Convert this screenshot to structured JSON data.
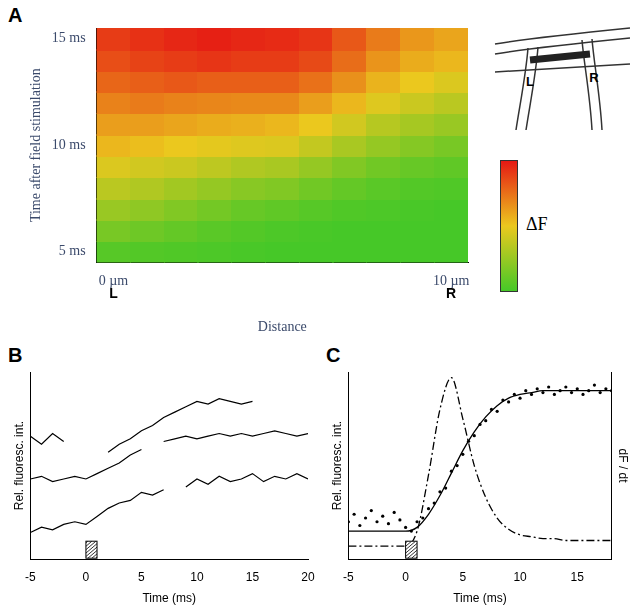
{
  "chart_data": [
    {
      "panel": "A",
      "type": "heatmap",
      "x_label": "Distance",
      "y_label": "Time after field stimulation",
      "z_label": "ΔF",
      "x": [
        0,
        1,
        2,
        3,
        4,
        5,
        6,
        7,
        8,
        9,
        10
      ],
      "y": [
        5,
        6,
        7,
        8,
        9,
        10,
        11,
        12,
        13,
        14,
        15
      ],
      "cells": [
        [
          0.05,
          0.04,
          0.03,
          0.02,
          0.01,
          0,
          0,
          0,
          0,
          0,
          0
        ],
        [
          0.15,
          0.12,
          0.09,
          0.06,
          0.04,
          0.02,
          0.01,
          0,
          0,
          0,
          0
        ],
        [
          0.25,
          0.22,
          0.18,
          0.14,
          0.1,
          0.08,
          0.05,
          0.03,
          0.02,
          0.01,
          0
        ],
        [
          0.35,
          0.32,
          0.28,
          0.24,
          0.2,
          0.18,
          0.13,
          0.09,
          0.06,
          0.04,
          0.03
        ],
        [
          0.45,
          0.42,
          0.4,
          0.36,
          0.32,
          0.3,
          0.24,
          0.18,
          0.13,
          0.1,
          0.08
        ],
        [
          0.55,
          0.53,
          0.5,
          0.48,
          0.46,
          0.45,
          0.38,
          0.3,
          0.24,
          0.19,
          0.15
        ],
        [
          0.62,
          0.62,
          0.6,
          0.58,
          0.57,
          0.55,
          0.5,
          0.42,
          0.34,
          0.29,
          0.25
        ],
        [
          0.7,
          0.72,
          0.7,
          0.69,
          0.68,
          0.68,
          0.62,
          0.55,
          0.46,
          0.4,
          0.35
        ],
        [
          0.78,
          0.8,
          0.82,
          0.8,
          0.8,
          0.8,
          0.75,
          0.66,
          0.56,
          0.5,
          0.45
        ],
        [
          0.85,
          0.88,
          0.9,
          0.92,
          0.9,
          0.9,
          0.86,
          0.76,
          0.65,
          0.58,
          0.55
        ],
        [
          0.9,
          0.93,
          0.96,
          0.98,
          0.96,
          0.95,
          0.92,
          0.82,
          0.72,
          0.64,
          0.6
        ]
      ],
      "zlim": [
        0,
        1
      ],
      "xlim": [
        -0.5,
        10.5
      ],
      "xticks": [
        {
          "value": 0,
          "label": "0 µm"
        },
        {
          "value": 10,
          "label": "10 µm"
        }
      ],
      "ylim": [
        4.5,
        15.5
      ],
      "yticks": [
        {
          "value": 5,
          "label": "5 ms"
        },
        {
          "value": 10,
          "label": "10 ms"
        },
        {
          "value": 15,
          "label": "15 ms"
        }
      ],
      "annotations": [
        {
          "x": 0,
          "text": "L"
        },
        {
          "x": 10,
          "text": "R"
        }
      ],
      "inset_labels": [
        "L",
        "R"
      ],
      "grid": false
    },
    {
      "panel": "B",
      "type": "line",
      "x": [
        -5,
        -4,
        -3,
        -2,
        -1,
        0,
        1,
        2,
        3,
        4,
        5,
        6,
        7,
        8,
        9,
        10,
        11,
        12,
        13,
        14,
        15,
        16,
        17,
        18,
        19,
        20
      ],
      "series": [
        {
          "color": "#000000",
          "values": [
            7.6,
            7.3,
            7.7,
            7.4,
            null,
            null,
            null,
            7.0,
            7.3,
            7.5,
            7.8,
            8.0,
            8.3,
            8.5,
            8.7,
            8.9,
            8.8,
            9.0,
            8.9,
            8.8,
            8.9,
            null,
            null,
            null,
            null,
            null
          ]
        },
        {
          "color": "#000000",
          "values": [
            6.0,
            6.1,
            5.9,
            6.0,
            6.1,
            6.0,
            6.2,
            6.4,
            6.6,
            6.9,
            7.1,
            null,
            7.4,
            7.5,
            7.6,
            7.5,
            7.6,
            7.7,
            7.6,
            7.7,
            7.6,
            7.7,
            7.8,
            7.7,
            7.6,
            7.7
          ]
        },
        {
          "color": "#000000",
          "values": [
            4.0,
            4.2,
            4.1,
            4.3,
            4.4,
            4.3,
            4.6,
            4.9,
            5.1,
            5.2,
            5.5,
            5.4,
            5.6,
            null,
            5.7,
            6.0,
            5.8,
            6.1,
            5.9,
            6.0,
            6.2,
            5.9,
            6.1,
            6.0,
            6.2,
            6.0
          ]
        }
      ],
      "xlim": [
        -5,
        20
      ],
      "xticks": [
        -5,
        0,
        5,
        10,
        15,
        20
      ],
      "ylim": [
        3,
        10
      ],
      "x_label": "Time (ms)",
      "y_label": "Rel. fluoresc. int.",
      "stimulus": [
        0,
        1
      ],
      "tick_labels": "x",
      "grid": false
    },
    {
      "panel": "C",
      "type": "line",
      "series": [
        {
          "type": "scatter",
          "marker": "circle",
          "color": "#000000",
          "x": [
            -5,
            -4.5,
            -4,
            -3.5,
            -3,
            -2.5,
            -2,
            -1.5,
            -1,
            -0.5,
            0,
            0.5,
            1,
            1.5,
            2,
            2.5,
            3,
            3.5,
            4,
            4.5,
            5,
            5.5,
            6,
            6.5,
            7,
            7.5,
            8,
            8.5,
            9,
            9.5,
            10,
            10.5,
            11,
            11.5,
            12,
            12.5,
            13,
            13.5,
            14,
            14.5,
            15,
            15.5,
            16,
            16.5,
            17,
            17.5,
            18
          ],
          "values": [
            0.2,
            0.24,
            0.18,
            0.22,
            0.26,
            0.2,
            0.23,
            0.19,
            0.25,
            0.21,
            0.17,
            0.15,
            0.2,
            0.22,
            0.27,
            0.3,
            0.36,
            0.38,
            0.47,
            0.5,
            0.56,
            0.63,
            0.66,
            0.72,
            0.74,
            0.8,
            0.79,
            0.85,
            0.84,
            0.88,
            0.86,
            0.9,
            0.88,
            0.91,
            0.89,
            0.92,
            0.88,
            0.9,
            0.92,
            0.89,
            0.91,
            0.88,
            0.9,
            0.93,
            0.89,
            0.91,
            0.9
          ]
        },
        {
          "type": "line",
          "line_style": "solid",
          "color": "#000000",
          "x": [
            -5,
            -4,
            -3,
            -2,
            -1,
            0,
            1,
            2,
            3,
            4,
            5,
            6,
            7,
            8,
            9,
            10,
            11,
            12,
            13,
            14,
            15,
            16,
            17,
            18
          ],
          "values": [
            0.15,
            0.15,
            0.15,
            0.15,
            0.15,
            0.15,
            0.17,
            0.24,
            0.34,
            0.46,
            0.58,
            0.68,
            0.76,
            0.82,
            0.86,
            0.88,
            0.89,
            0.9,
            0.9,
            0.9,
            0.9,
            0.9,
            0.9,
            0.9
          ]
        },
        {
          "type": "line",
          "line_style": "dashdot",
          "axis": "y2",
          "color": "#000000",
          "x": [
            -5,
            -4,
            -3,
            -2,
            -1,
            0,
            1,
            2,
            3,
            4,
            5,
            6,
            7,
            8,
            9,
            10,
            11,
            12,
            13,
            14,
            15,
            16,
            17,
            18
          ],
          "values": [
            0.07,
            0.07,
            0.07,
            0.07,
            0.07,
            0.07,
            0.15,
            0.45,
            0.8,
            0.97,
            0.75,
            0.5,
            0.33,
            0.22,
            0.16,
            0.13,
            0.12,
            0.11,
            0.11,
            0.1,
            0.1,
            0.1,
            0.1,
            0.1
          ]
        }
      ],
      "xlim": [
        -5,
        18
      ],
      "xticks": [
        -5,
        0,
        5,
        10,
        15
      ],
      "ylim": [
        0,
        1
      ],
      "y2lim": [
        0,
        1
      ],
      "x_label": "Time (ms)",
      "y_label": "Rel. fluoresc. int.",
      "y2_label": "dF / dt",
      "stimulus": [
        0,
        1
      ],
      "tick_labels": "x",
      "grid": false
    }
  ]
}
